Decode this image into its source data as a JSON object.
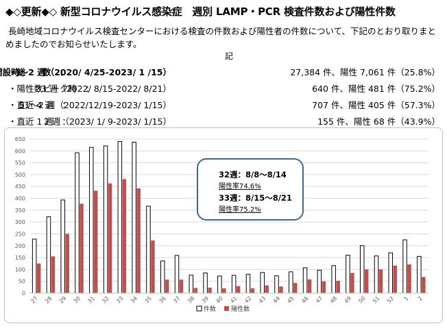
{
  "header": {
    "title": "◆◇更新◆◇ 新型コロナウイルス感染症　週別 LAMP・PCR 検査件数および陽性件数"
  },
  "intro": {
    "text": "長崎地域コロナウイルス検査センターにおける検査の件数および陽性者の件数について、下記のとおり取りまとめましたのでお知らせいたします。",
    "ki": "記"
  },
  "summary": [
    {
      "label": "・総　　数　：",
      "period": "開設時～2 週（2020/ 4/25-2023/ 1 /15）",
      "result": "27,384 件、陽性 7,061 件（25.8%）"
    },
    {
      "label": "・陽性数ピーク時　：",
      "period": "33 週（2022/ 8/15-2022/ 8/21）",
      "result": "640 件、陽性 481 件（75.2%）"
    },
    {
      "label": "・直近 4 週　：",
      "period": "51～2 週（2022/12/19-2023/ 1/15）",
      "result": "707 件、陽性 405 件（57.3%）"
    },
    {
      "label": "・直近 1 週　：",
      "period": "2 週（2023/ 1/ 9-2023/ 1/15）",
      "result": "155 件、陽性 68 件（43.9%）"
    }
  ],
  "callout": {
    "week32": "32週：8/8～8/14",
    "rate32": "陽性率74.6%",
    "week33": "33週：8/15～8/21",
    "rate33": "陽性率75.2%"
  },
  "chart_data": {
    "type": "bar",
    "categories": [
      "27",
      "28",
      "29",
      "30",
      "31",
      "32",
      "33",
      "34",
      "35",
      "36",
      "37",
      "38",
      "39",
      "40",
      "41",
      "42",
      "43",
      "44",
      "45",
      "46",
      "47",
      "48",
      "49",
      "50",
      "51",
      "52",
      "1",
      "2"
    ],
    "series": [
      {
        "name": "件数",
        "values": [
          228,
          322,
          393,
          592,
          615,
          621,
          640,
          637,
          367,
          136,
          159,
          76,
          85,
          72,
          75,
          80,
          87,
          73,
          90,
          107,
          97,
          116,
          160,
          200,
          157,
          170,
          225,
          155
        ],
        "color": "#ffffff",
        "stroke": "#000000"
      },
      {
        "name": "陽性数",
        "values": [
          125,
          155,
          250,
          377,
          432,
          463,
          481,
          442,
          222,
          57,
          57,
          22,
          23,
          20,
          30,
          20,
          33,
          28,
          43,
          58,
          50,
          52,
          85,
          100,
          100,
          116,
          121,
          68
        ],
        "color": "#c0504d"
      }
    ],
    "ylim": [
      0,
      650
    ],
    "yticks": [
      0,
      50,
      100,
      150,
      200,
      250,
      300,
      350,
      400,
      450,
      500,
      550,
      600,
      650
    ],
    "grid": true,
    "legend_position": "bottom-center"
  }
}
